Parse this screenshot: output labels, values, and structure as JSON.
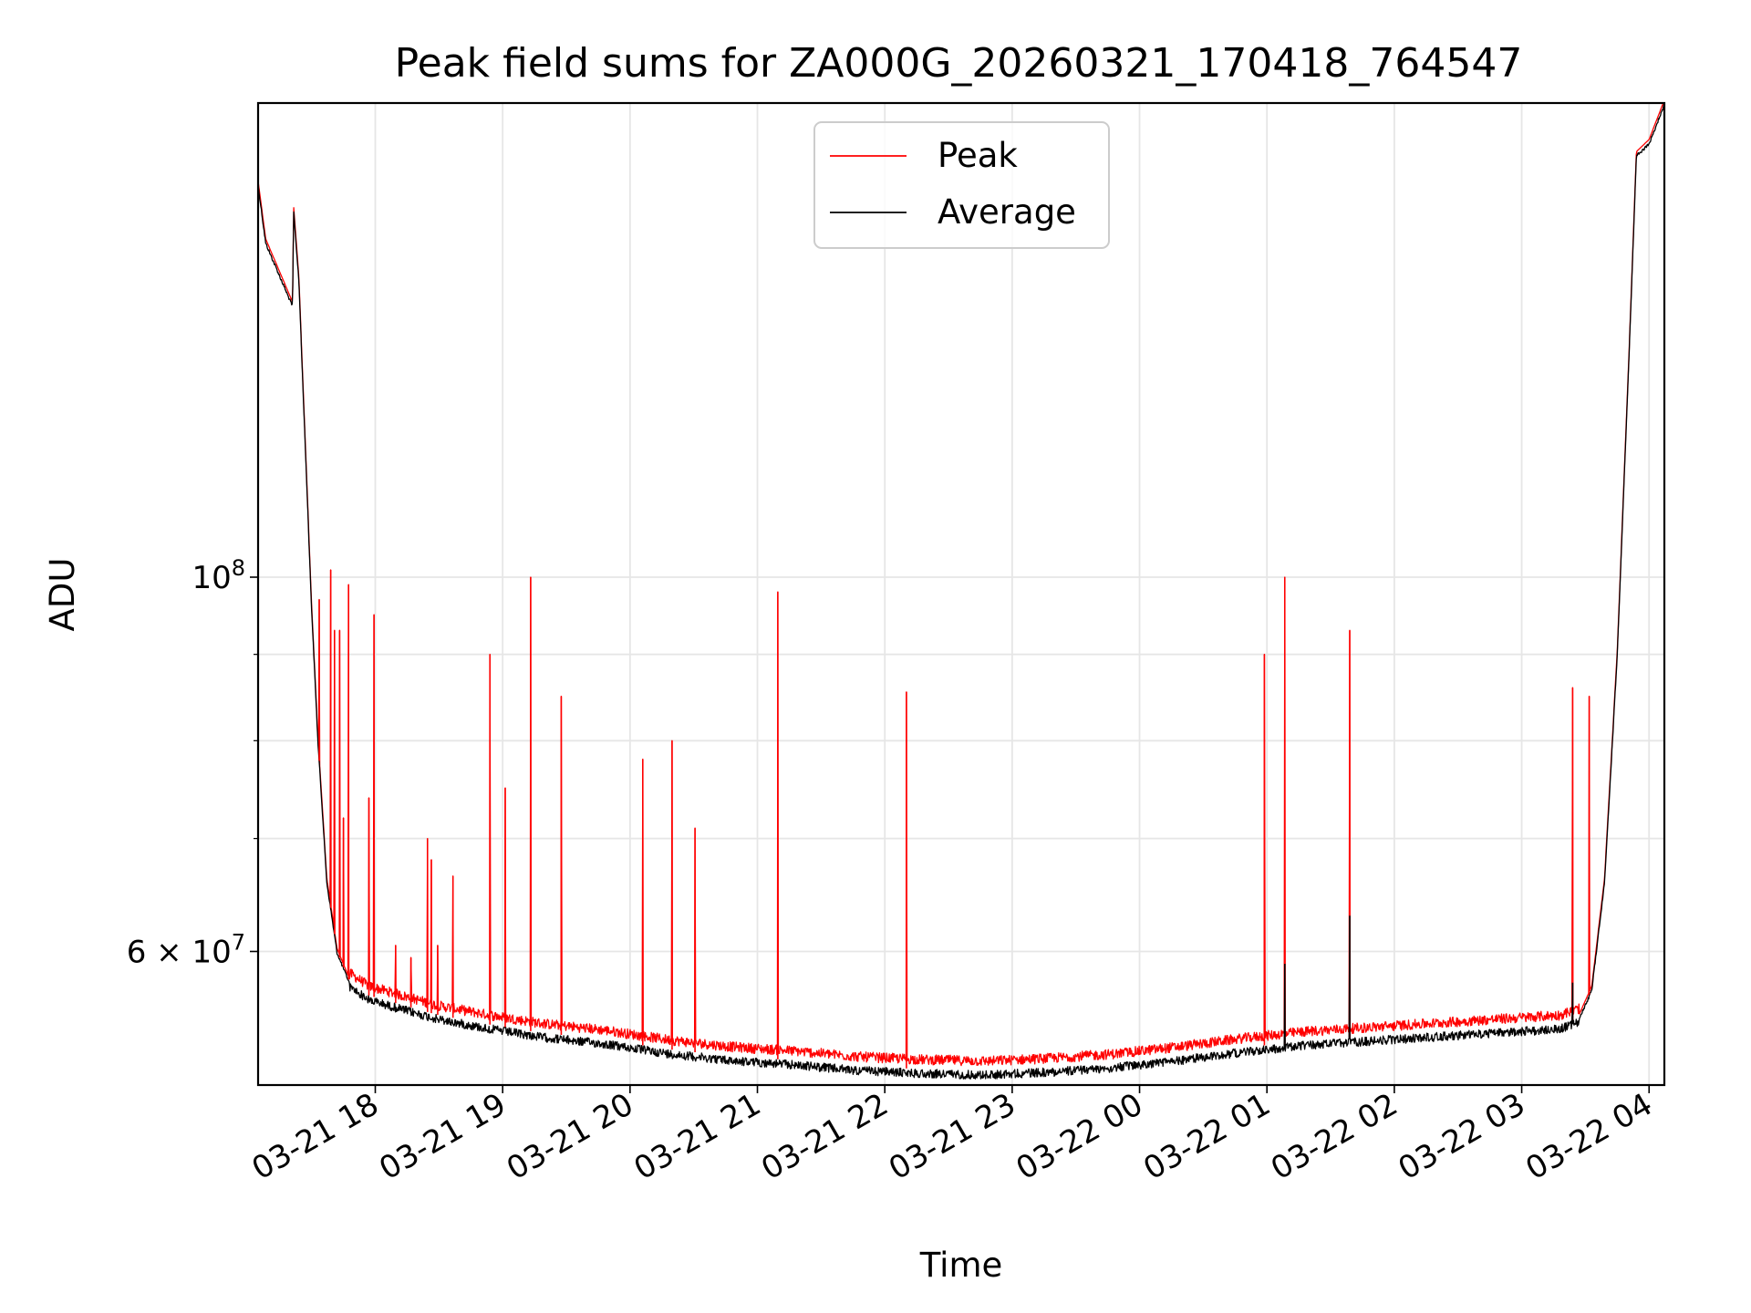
{
  "chart_data": {
    "type": "line",
    "title": "Peak field sums for ZA000G_20260321_170418_764547",
    "xlabel": "Time",
    "ylabel": "ADU",
    "yscale": "log",
    "ylim": [
      50000000,
      191000000
    ],
    "xlim_hours": [
      17.08,
      28.12
    ],
    "grid": true,
    "legend_position": "top-center",
    "x_ticks": [
      {
        "hour": 18,
        "label": "03-21 18"
      },
      {
        "hour": 19,
        "label": "03-21 19"
      },
      {
        "hour": 20,
        "label": "03-21 20"
      },
      {
        "hour": 21,
        "label": "03-21 21"
      },
      {
        "hour": 22,
        "label": "03-21 22"
      },
      {
        "hour": 23,
        "label": "03-21 23"
      },
      {
        "hour": 24,
        "label": "03-22 00"
      },
      {
        "hour": 25,
        "label": "03-22 01"
      },
      {
        "hour": 26,
        "label": "03-22 02"
      },
      {
        "hour": 27,
        "label": "03-22 03"
      },
      {
        "hour": 28,
        "label": "03-22 04"
      }
    ],
    "y_major_ticks": [
      {
        "value": 100000000,
        "mantissa": "10",
        "exponent": "8"
      },
      {
        "value": 60000000,
        "mantissa": "6 × 10",
        "exponent": "7"
      }
    ],
    "y_minor_ticks": [
      70000000,
      80000000,
      90000000
    ],
    "series": [
      {
        "name": "Peak",
        "color": "#ff0000"
      },
      {
        "name": "Average",
        "color": "#000000"
      }
    ],
    "average_trend": [
      [
        17.08,
        171000000
      ],
      [
        17.14,
        158000000
      ],
      [
        17.3,
        148000000
      ],
      [
        17.35,
        145000000
      ],
      [
        17.36,
        165000000
      ],
      [
        17.4,
        150000000
      ],
      [
        17.45,
        120000000
      ],
      [
        17.5,
        96000000
      ],
      [
        17.55,
        80000000
      ],
      [
        17.62,
        66000000
      ],
      [
        17.7,
        60000000
      ],
      [
        17.8,
        57500000
      ],
      [
        17.95,
        56500000
      ],
      [
        18.2,
        55800000
      ],
      [
        18.5,
        55000000
      ],
      [
        18.9,
        54300000
      ],
      [
        19.3,
        53700000
      ],
      [
        19.8,
        53200000
      ],
      [
        20.3,
        52500000
      ],
      [
        20.8,
        52000000
      ],
      [
        21.3,
        51700000
      ],
      [
        21.8,
        51300000
      ],
      [
        22.3,
        51100000
      ],
      [
        22.8,
        51000000
      ],
      [
        23.3,
        51200000
      ],
      [
        23.8,
        51500000
      ],
      [
        24.3,
        52000000
      ],
      [
        24.8,
        52600000
      ],
      [
        25.3,
        53100000
      ],
      [
        25.8,
        53400000
      ],
      [
        26.3,
        53700000
      ],
      [
        26.8,
        54000000
      ],
      [
        27.3,
        54300000
      ],
      [
        27.45,
        54800000
      ],
      [
        27.55,
        57000000
      ],
      [
        27.65,
        66000000
      ],
      [
        27.75,
        90000000
      ],
      [
        27.85,
        140000000
      ],
      [
        27.9,
        178000000
      ],
      [
        28.0,
        181000000
      ],
      [
        28.12,
        191000000
      ]
    ],
    "peak_spikes": [
      {
        "hour": 17.56,
        "value": 97000000
      },
      {
        "hour": 17.65,
        "value": 101000000
      },
      {
        "hour": 17.68,
        "value": 93000000
      },
      {
        "hour": 17.72,
        "value": 93000000
      },
      {
        "hour": 17.75,
        "value": 72000000
      },
      {
        "hour": 17.79,
        "value": 99000000
      },
      {
        "hour": 17.95,
        "value": 74000000
      },
      {
        "hour": 17.99,
        "value": 95000000
      },
      {
        "hour": 18.16,
        "value": 60500000
      },
      {
        "hour": 18.28,
        "value": 59500000
      },
      {
        "hour": 18.41,
        "value": 70000000
      },
      {
        "hour": 18.44,
        "value": 68000000
      },
      {
        "hour": 18.49,
        "value": 60500000
      },
      {
        "hour": 18.61,
        "value": 66500000
      },
      {
        "hour": 18.9,
        "value": 90000000
      },
      {
        "hour": 19.02,
        "value": 75000000
      },
      {
        "hour": 19.22,
        "value": 100000000
      },
      {
        "hour": 19.46,
        "value": 85000000
      },
      {
        "hour": 20.1,
        "value": 78000000
      },
      {
        "hour": 20.33,
        "value": 80000000
      },
      {
        "hour": 20.51,
        "value": 71000000
      },
      {
        "hour": 21.16,
        "value": 98000000
      },
      {
        "hour": 22.17,
        "value": 85500000
      },
      {
        "hour": 24.98,
        "value": 90000000
      },
      {
        "hour": 25.14,
        "value": 100000000
      },
      {
        "hour": 25.65,
        "value": 93000000
      },
      {
        "hour": 27.4,
        "value": 86000000
      },
      {
        "hour": 27.53,
        "value": 85000000
      }
    ],
    "average_spikes": [
      {
        "hour": 25.14,
        "value": 59000000
      },
      {
        "hour": 25.65,
        "value": 63000000
      },
      {
        "hour": 27.4,
        "value": 57500000
      }
    ]
  }
}
